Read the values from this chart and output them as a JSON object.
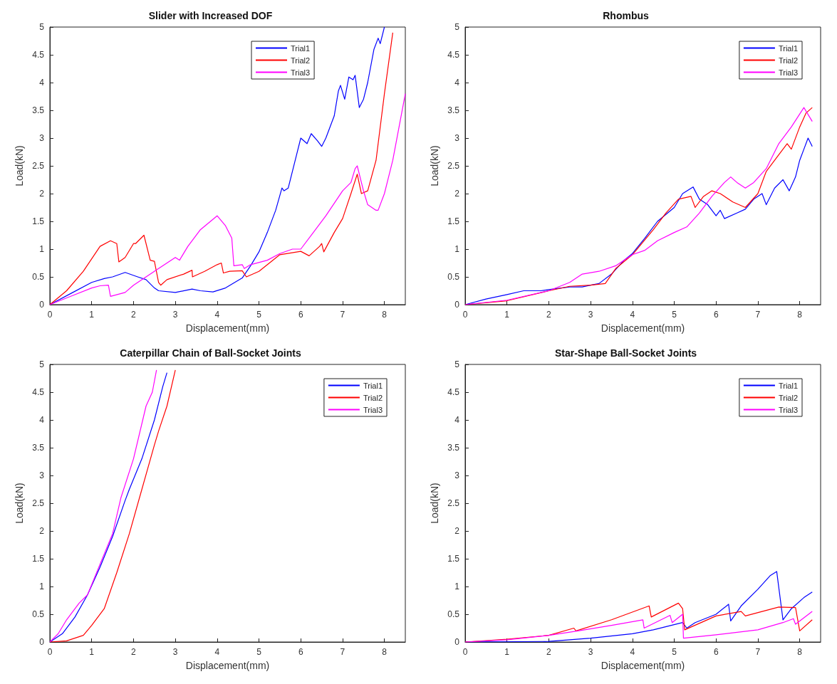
{
  "chart_data": [
    {
      "type": "line",
      "title": "Slider with Increased DOF",
      "xlabel": "Displacement(mm)",
      "ylabel": "Load(kN)",
      "xlim": [
        0,
        8.5
      ],
      "ylim": [
        0,
        5
      ],
      "xticks": [
        0,
        1,
        2,
        3,
        4,
        5,
        6,
        7,
        8
      ],
      "yticks": [
        0,
        0.5,
        1,
        1.5,
        2,
        2.5,
        3,
        3.5,
        4,
        4.5,
        5
      ],
      "grid": false,
      "legend": "top",
      "series": [
        {
          "name": "Trial1",
          "color": "#0000ff",
          "x": [
            0,
            0.5,
            1,
            1.3,
            1.5,
            1.8,
            2.1,
            2.3,
            2.5,
            2.6,
            3,
            3.4,
            3.6,
            3.9,
            4.2,
            4.6,
            4.8,
            5,
            5.2,
            5.4,
            5.55,
            5.6,
            5.7,
            5.9,
            6,
            6.15,
            6.25,
            6.4,
            6.5,
            6.6,
            6.8,
            6.9,
            6.95,
            7.05,
            7.15,
            7.25,
            7.3,
            7.4,
            7.5,
            7.6,
            7.75,
            7.85,
            7.9,
            8
          ],
          "values": [
            0,
            0.2,
            0.4,
            0.47,
            0.5,
            0.58,
            0.5,
            0.45,
            0.3,
            0.25,
            0.22,
            0.28,
            0.25,
            0.23,
            0.3,
            0.48,
            0.7,
            0.95,
            1.3,
            1.7,
            2.1,
            2.05,
            2.1,
            2.7,
            3,
            2.9,
            3.08,
            2.95,
            2.85,
            3,
            3.4,
            3.85,
            3.95,
            3.7,
            4.1,
            4.05,
            4.13,
            3.55,
            3.7,
            4,
            4.6,
            4.8,
            4.7,
            5
          ]
        },
        {
          "name": "Trial2",
          "color": "#ff0000",
          "x": [
            0,
            0.4,
            0.8,
            1.2,
            1.45,
            1.6,
            1.65,
            1.8,
            2,
            2.05,
            2.25,
            2.4,
            2.5,
            2.6,
            2.65,
            2.8,
            3.2,
            3.4,
            3.41,
            3.7,
            4,
            4.1,
            4.15,
            4.3,
            4.6,
            4.7,
            5,
            5.5,
            6,
            6.2,
            6.45,
            6.5,
            6.55,
            6.8,
            7,
            7.2,
            7.35,
            7.45,
            7.6,
            7.8,
            8,
            8.2
          ],
          "values": [
            0,
            0.25,
            0.6,
            1.05,
            1.15,
            1.1,
            0.77,
            0.85,
            1.1,
            1.1,
            1.25,
            0.8,
            0.78,
            0.4,
            0.35,
            0.45,
            0.55,
            0.62,
            0.5,
            0.6,
            0.72,
            0.75,
            0.57,
            0.6,
            0.61,
            0.5,
            0.6,
            0.9,
            0.96,
            0.88,
            1.05,
            1.1,
            0.95,
            1.3,
            1.55,
            2,
            2.35,
            2,
            2.05,
            2.6,
            3.8,
            4.9
          ]
        },
        {
          "name": "Trial3",
          "color": "#ff00ff",
          "x": [
            0,
            0.5,
            1,
            1.2,
            1.4,
            1.45,
            1.8,
            2,
            2.3,
            2.6,
            3,
            3.1,
            3.3,
            3.6,
            4,
            4.2,
            4.35,
            4.4,
            4.6,
            4.65,
            4.8,
            5.2,
            5.5,
            5.8,
            6,
            6.3,
            6.6,
            7,
            7.2,
            7.3,
            7.35,
            7.5,
            7.6,
            7.7,
            7.8,
            7.85,
            8,
            8.2,
            8.5
          ],
          "values": [
            0,
            0.15,
            0.3,
            0.34,
            0.35,
            0.15,
            0.22,
            0.35,
            0.5,
            0.65,
            0.85,
            0.8,
            1.05,
            1.35,
            1.6,
            1.42,
            1.2,
            0.7,
            0.72,
            0.65,
            0.72,
            0.8,
            0.92,
            1,
            1,
            1.3,
            1.6,
            2.05,
            2.2,
            2.45,
            2.5,
            2.05,
            1.8,
            1.75,
            1.7,
            1.7,
            2,
            2.6,
            3.8
          ]
        }
      ]
    },
    {
      "type": "line",
      "title": "Rhombus",
      "xlabel": "Displacement(mm)",
      "ylabel": "Load(kN)",
      "xlim": [
        0,
        8.5
      ],
      "ylim": [
        0,
        5
      ],
      "xticks": [
        0,
        1,
        2,
        3,
        4,
        5,
        6,
        7,
        8
      ],
      "yticks": [
        0,
        0.5,
        1,
        1.5,
        2,
        2.5,
        3,
        3.5,
        4,
        4.5,
        5
      ],
      "grid": false,
      "legend": "top right",
      "series": [
        {
          "name": "Trial1",
          "color": "#0000ff",
          "x": [
            0,
            0.5,
            1,
            1.4,
            1.8,
            2,
            2.5,
            2.8,
            3,
            3.2,
            3.5,
            3.8,
            4,
            4.3,
            4.6,
            5,
            5.2,
            5.45,
            5.6,
            5.8,
            6,
            6.1,
            6.2,
            6.5,
            6.7,
            6.9,
            7.1,
            7.2,
            7.4,
            7.6,
            7.75,
            7.9,
            8,
            8.1,
            8.2,
            8.3
          ],
          "values": [
            0,
            0.1,
            0.18,
            0.25,
            0.25,
            0.27,
            0.32,
            0.32,
            0.35,
            0.38,
            0.55,
            0.8,
            0.92,
            1.2,
            1.5,
            1.75,
            2,
            2.12,
            1.9,
            1.8,
            1.6,
            1.7,
            1.55,
            1.65,
            1.72,
            1.9,
            2,
            1.8,
            2.1,
            2.25,
            2.05,
            2.3,
            2.6,
            2.8,
            3,
            2.85
          ]
        },
        {
          "name": "Trial2",
          "color": "#ff0000",
          "x": [
            0,
            1,
            2,
            2.5,
            3,
            3.35,
            3.6,
            4,
            4.5,
            4.8,
            5.1,
            5.4,
            5.5,
            5.7,
            5.9,
            6.1,
            6.4,
            6.7,
            7,
            7.2,
            7.5,
            7.7,
            7.8,
            8,
            8.15,
            8.3
          ],
          "values": [
            0,
            0.07,
            0.25,
            0.33,
            0.35,
            0.38,
            0.65,
            0.9,
            1.35,
            1.65,
            1.9,
            1.95,
            1.75,
            1.95,
            2.05,
            2,
            1.85,
            1.75,
            2,
            2.4,
            2.7,
            2.9,
            2.8,
            3.2,
            3.45,
            3.55
          ]
        },
        {
          "name": "Trial3",
          "color": "#ff00ff",
          "x": [
            0,
            1,
            2,
            2.5,
            2.8,
            3.2,
            3.6,
            4,
            4.3,
            4.6,
            5,
            5.3,
            5.6,
            5.9,
            6.2,
            6.35,
            6.5,
            6.7,
            6.9,
            7.2,
            7.5,
            7.8,
            8.1,
            8.3
          ],
          "values": [
            0,
            0.08,
            0.25,
            0.4,
            0.55,
            0.6,
            0.7,
            0.9,
            0.98,
            1.15,
            1.3,
            1.4,
            1.65,
            1.95,
            2.2,
            2.3,
            2.2,
            2.1,
            2.2,
            2.45,
            2.9,
            3.2,
            3.55,
            3.3
          ]
        }
      ]
    },
    {
      "type": "line",
      "title": "Caterpillar Chain of Ball-Socket Joints",
      "xlabel": "Displacement(mm)",
      "ylabel": "Load(kN)",
      "xlim": [
        0,
        8.5
      ],
      "ylim": [
        0,
        5
      ],
      "xticks": [
        0,
        1,
        2,
        3,
        4,
        5,
        6,
        7,
        8
      ],
      "yticks": [
        0,
        0.5,
        1,
        1.5,
        2,
        2.5,
        3,
        3.5,
        4,
        4.5,
        5
      ],
      "grid": false,
      "legend": "top right",
      "series": [
        {
          "name": "Trial1",
          "color": "#0000ff",
          "x": [
            0,
            0.3,
            0.6,
            0.9,
            1.2,
            1.5,
            1.8,
            1.9,
            2.2,
            2.5,
            2.7,
            2.8
          ],
          "values": [
            0,
            0.15,
            0.45,
            0.85,
            1.35,
            1.9,
            2.55,
            2.75,
            3.3,
            4,
            4.6,
            4.85
          ]
        },
        {
          "name": "Trial2",
          "color": "#ff0000",
          "x": [
            0,
            0.4,
            0.8,
            1,
            1.3,
            1.6,
            1.9,
            2.2,
            2.5,
            2.6,
            2.8,
            3
          ],
          "values": [
            0,
            0.02,
            0.12,
            0.3,
            0.6,
            1.25,
            1.95,
            2.75,
            3.55,
            3.8,
            4.25,
            4.9
          ]
        },
        {
          "name": "Trial3",
          "color": "#ff00ff",
          "x": [
            0,
            0.2,
            0.4,
            0.7,
            0.9,
            1.2,
            1.5,
            1.7,
            2,
            2.3,
            2.45,
            2.55
          ],
          "values": [
            0,
            0.15,
            0.4,
            0.7,
            0.85,
            1.4,
            1.95,
            2.6,
            3.3,
            4.25,
            4.5,
            4.9
          ]
        }
      ]
    },
    {
      "type": "line",
      "title": "Star-Shape Ball-Socket Joints",
      "xlabel": "Displacement(mm)",
      "ylabel": "Load(kN)",
      "xlim": [
        0,
        8.5
      ],
      "ylim": [
        0,
        5
      ],
      "xticks": [
        0,
        1,
        2,
        3,
        4,
        5,
        6,
        7,
        8
      ],
      "yticks": [
        0,
        0.5,
        1,
        1.5,
        2,
        2.5,
        3,
        3.5,
        4,
        4.5,
        5
      ],
      "grid": false,
      "legend": "top right",
      "series": [
        {
          "name": "Trial1",
          "color": "#0000ff",
          "x": [
            0,
            2,
            3,
            4,
            4.5,
            5.2,
            5.3,
            5.5,
            6,
            6.3,
            6.35,
            6.6,
            7,
            7.3,
            7.45,
            7.6,
            7.8,
            8.1,
            8.3
          ],
          "values": [
            0,
            0.01,
            0.07,
            0.15,
            0.22,
            0.35,
            0.25,
            0.35,
            0.5,
            0.68,
            0.38,
            0.65,
            0.95,
            1.2,
            1.27,
            0.4,
            0.6,
            0.8,
            0.9
          ]
        },
        {
          "name": "Trial2",
          "color": "#ff0000",
          "x": [
            0,
            1,
            2,
            2.6,
            2.65,
            3.5,
            4.4,
            4.45,
            5.1,
            5.2,
            5.25,
            6,
            6.6,
            6.7,
            7.5,
            7.9,
            8,
            8.3
          ],
          "values": [
            0,
            0.05,
            0.12,
            0.25,
            0.2,
            0.4,
            0.65,
            0.45,
            0.7,
            0.6,
            0.22,
            0.47,
            0.55,
            0.47,
            0.63,
            0.62,
            0.2,
            0.4
          ]
        },
        {
          "name": "Trial3",
          "color": "#ff00ff",
          "x": [
            0,
            1,
            2,
            2.7,
            3.5,
            4.25,
            4.28,
            4.9,
            4.95,
            5.2,
            5.22,
            6,
            7,
            7.6,
            7.85,
            7.9,
            8.3
          ],
          "values": [
            0,
            0.04,
            0.12,
            0.2,
            0.3,
            0.4,
            0.25,
            0.48,
            0.35,
            0.5,
            0.07,
            0.13,
            0.22,
            0.35,
            0.42,
            0.32,
            0.55
          ]
        }
      ]
    }
  ]
}
